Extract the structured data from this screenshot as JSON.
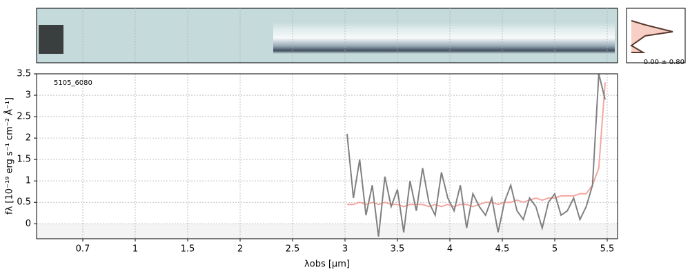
{
  "chart_data": {
    "type": "line",
    "object_label": "5105_6080",
    "profile_label": "0.00 ± 0.80",
    "xlabel": "λobs [μm]",
    "ylabel": "fλ [10⁻¹⁹ erg s⁻¹ cm⁻² Å⁻¹]",
    "xscale": "piecewise",
    "xlim": [
      0.6,
      5.52
    ],
    "xticks": [
      0.7,
      1.0,
      1.5,
      2.0,
      2.5,
      3.0,
      3.5,
      4.0,
      4.5,
      5.0,
      5.5
    ],
    "ylim": [
      -0.35,
      3.5
    ],
    "yticks": [
      0.0,
      0.5,
      1.0,
      1.5,
      2.0,
      2.5,
      3.0,
      3.5
    ],
    "grid": true,
    "x": [
      3.02,
      3.08,
      3.14,
      3.2,
      3.26,
      3.32,
      3.38,
      3.44,
      3.5,
      3.56,
      3.62,
      3.68,
      3.74,
      3.8,
      3.86,
      3.92,
      3.98,
      4.04,
      4.1,
      4.16,
      4.22,
      4.28,
      4.34,
      4.4,
      4.46,
      4.52,
      4.58,
      4.64,
      4.7,
      4.76,
      4.82,
      4.88,
      4.94,
      5.0,
      5.06,
      5.12,
      5.18,
      5.24,
      5.3,
      5.36,
      5.42,
      5.48
    ],
    "series": [
      {
        "color": "#808080",
        "values": [
          2.1,
          0.6,
          1.5,
          0.2,
          0.9,
          -0.3,
          1.1,
          0.4,
          0.8,
          -0.2,
          1.0,
          0.3,
          1.3,
          0.5,
          0.2,
          1.2,
          0.6,
          0.3,
          0.9,
          -0.1,
          0.7,
          0.4,
          0.2,
          0.6,
          -0.2,
          0.5,
          0.9,
          0.3,
          0.1,
          0.6,
          0.4,
          -0.1,
          0.5,
          0.7,
          0.2,
          0.3,
          0.6,
          0.1,
          0.4,
          0.9,
          3.5,
          2.9
        ]
      },
      {
        "color": "#f4a6a0",
        "values": [
          0.45,
          0.45,
          0.5,
          0.45,
          0.5,
          0.45,
          0.5,
          0.45,
          0.45,
          0.4,
          0.45,
          0.45,
          0.45,
          0.4,
          0.45,
          0.4,
          0.45,
          0.4,
          0.45,
          0.45,
          0.4,
          0.45,
          0.5,
          0.5,
          0.45,
          0.5,
          0.5,
          0.55,
          0.5,
          0.55,
          0.6,
          0.55,
          0.6,
          0.6,
          0.65,
          0.65,
          0.65,
          0.7,
          0.7,
          0.9,
          1.3,
          3.3
        ]
      }
    ]
  }
}
